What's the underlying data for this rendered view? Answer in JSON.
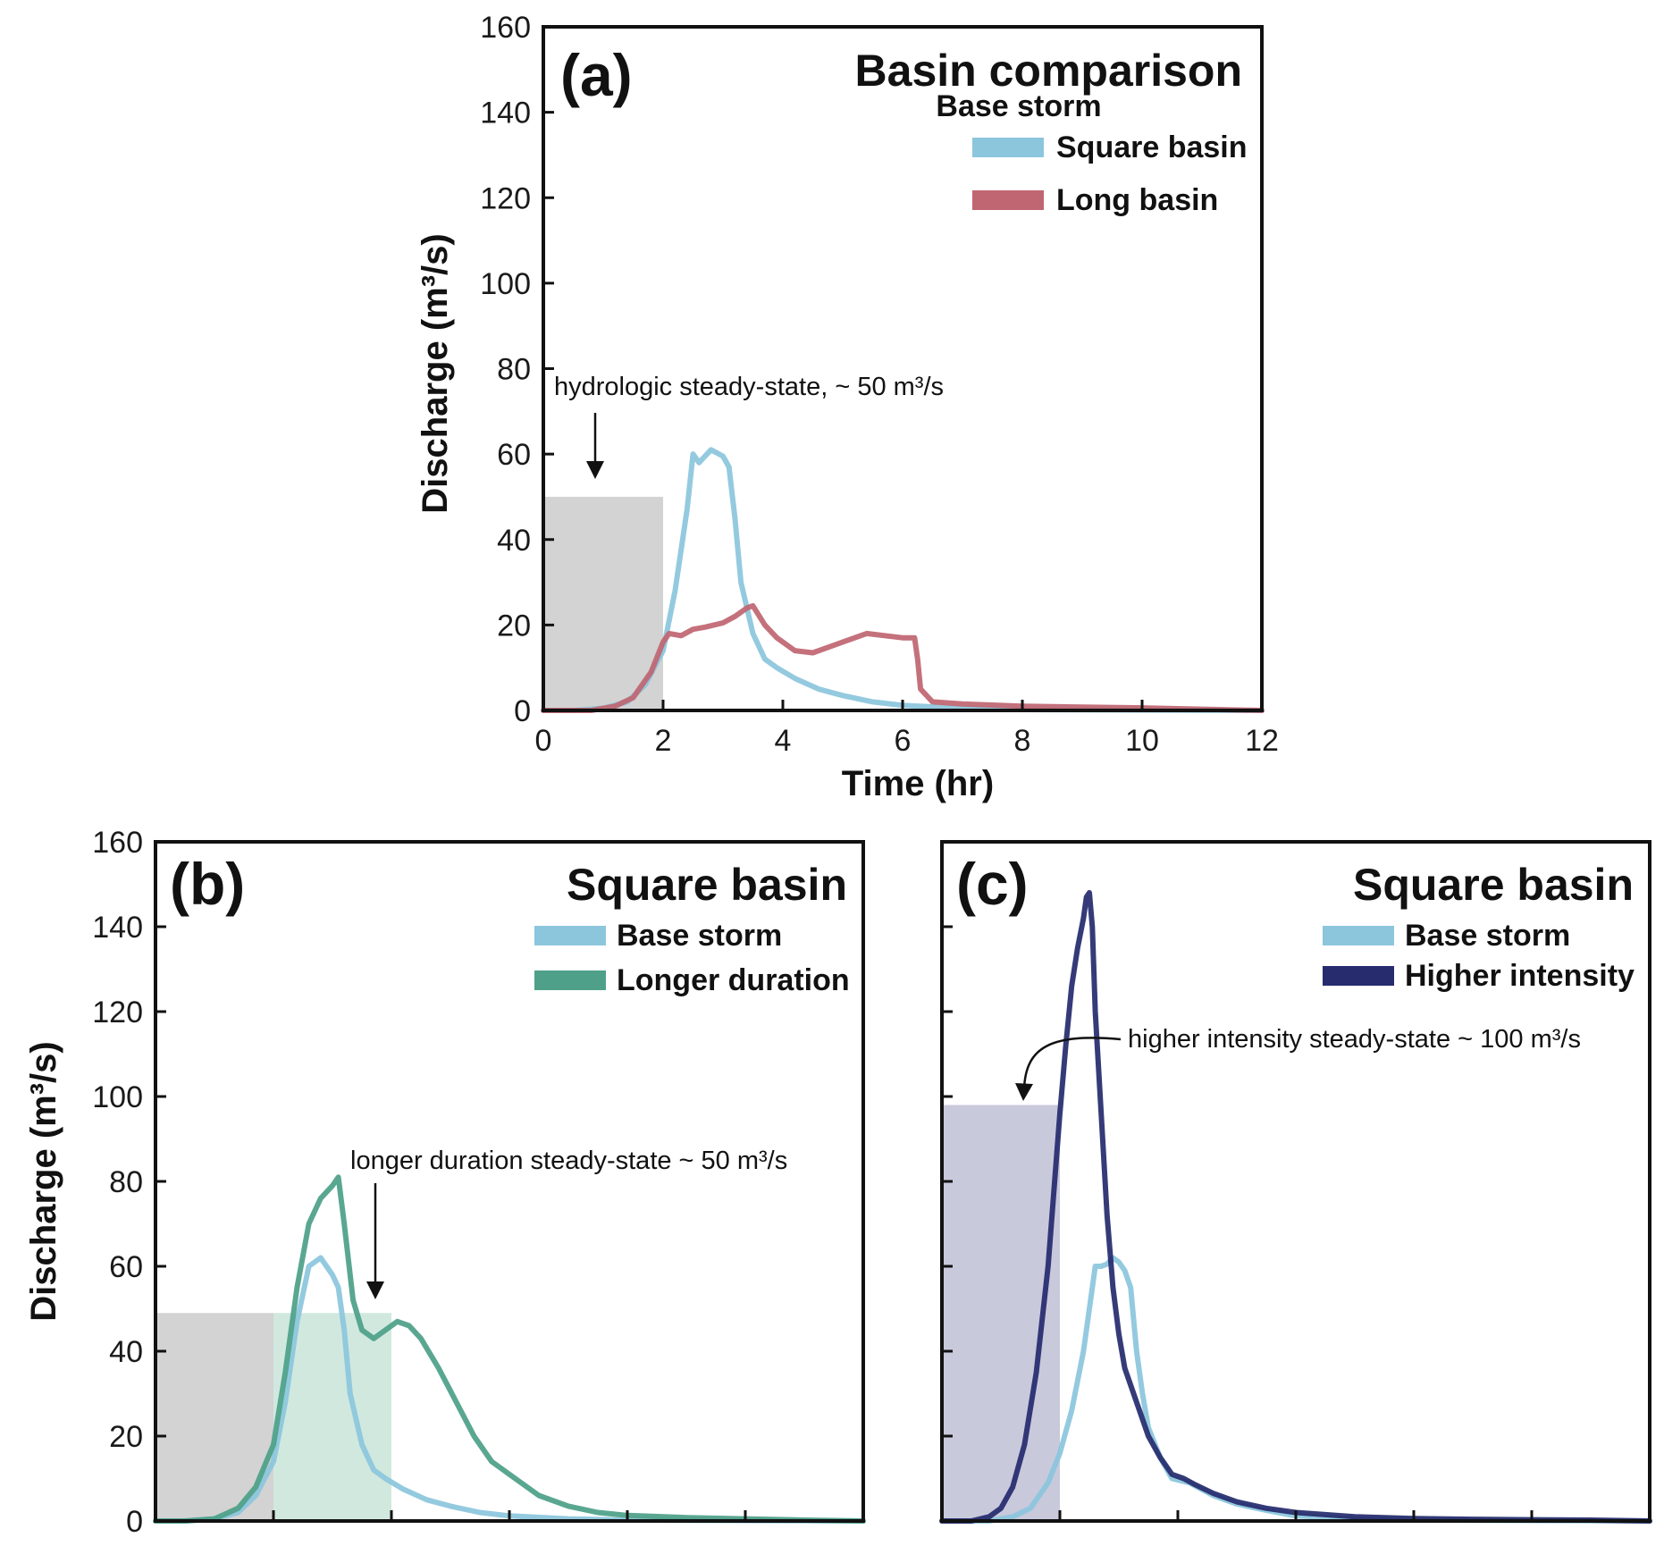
{
  "figure": {
    "ylabel": "Discharge (m³/s)",
    "xlabel": "Time (hr)"
  },
  "colors": {
    "square_basin": "#8cc6dd",
    "long_basin": "#c06672",
    "longer_duration": "#4ea089",
    "higher_intensity": "#262c6e",
    "steady_gray": "#d3d3d3",
    "steady_green": "#d1e8df",
    "steady_purple": "#c9c9dc"
  },
  "chart_data": [
    {
      "id": "a",
      "type": "line",
      "panel_label": "(a)",
      "title": "Basin comparison",
      "subtitle": "Base storm",
      "xlabel": "Time (hr)",
      "ylabel": "Discharge (m³/s)",
      "xlim": [
        0,
        12
      ],
      "ylim": [
        0,
        160
      ],
      "xticks": [
        "0",
        "2",
        "4",
        "6",
        "8",
        "10",
        "12"
      ],
      "yticks": [
        "0",
        "20",
        "40",
        "60",
        "80",
        "100",
        "120",
        "140",
        "160"
      ],
      "legend_position": "top-right",
      "annotation": "hydrologic steady-state, ~ 50 m³/s",
      "steady_state": [
        {
          "x0": 0,
          "x1": 2,
          "y": 50,
          "color": "#d3d3d3"
        }
      ],
      "series": [
        {
          "name": "Square basin",
          "color": "#8cc6dd",
          "points": [
            [
              0,
              0
            ],
            [
              0.5,
              0
            ],
            [
              1,
              0.5
            ],
            [
              1.4,
              2
            ],
            [
              1.7,
              6
            ],
            [
              2,
              14
            ],
            [
              2.2,
              28
            ],
            [
              2.4,
              47
            ],
            [
              2.5,
              60
            ],
            [
              2.6,
              58
            ],
            [
              2.8,
              61
            ],
            [
              3,
              59.5
            ],
            [
              3.1,
              57
            ],
            [
              3.2,
              45
            ],
            [
              3.3,
              30
            ],
            [
              3.5,
              18
            ],
            [
              3.7,
              12
            ],
            [
              3.9,
              10
            ],
            [
              4.2,
              7.5
            ],
            [
              4.6,
              5
            ],
            [
              5,
              3.5
            ],
            [
              5.5,
              2
            ],
            [
              6,
              1.2
            ],
            [
              7,
              0.5
            ],
            [
              8,
              0.2
            ],
            [
              12,
              0
            ]
          ]
        },
        {
          "name": "Long basin",
          "color": "#c06672",
          "points": [
            [
              0,
              0
            ],
            [
              0.8,
              0
            ],
            [
              1.2,
              1
            ],
            [
              1.5,
              3
            ],
            [
              1.8,
              9
            ],
            [
              2,
              16
            ],
            [
              2.1,
              18
            ],
            [
              2.3,
              17.5
            ],
            [
              2.5,
              19
            ],
            [
              2.7,
              19.5
            ],
            [
              3,
              20.5
            ],
            [
              3.2,
              22
            ],
            [
              3.4,
              24
            ],
            [
              3.5,
              24.5
            ],
            [
              3.7,
              20
            ],
            [
              3.9,
              17
            ],
            [
              4.2,
              14
            ],
            [
              4.5,
              13.5
            ],
            [
              4.8,
              15
            ],
            [
              5.1,
              16.5
            ],
            [
              5.4,
              18
            ],
            [
              5.7,
              17.5
            ],
            [
              6,
              17
            ],
            [
              6.2,
              17
            ],
            [
              6.25,
              12
            ],
            [
              6.3,
              5
            ],
            [
              6.5,
              2
            ],
            [
              7,
              1.5
            ],
            [
              8,
              1
            ],
            [
              9,
              0.8
            ],
            [
              10,
              0.6
            ],
            [
              11,
              0.3
            ],
            [
              12,
              0
            ]
          ]
        }
      ]
    },
    {
      "id": "b",
      "type": "line",
      "panel_label": "(b)",
      "title": "Square basin",
      "ylabel": "Discharge (m³/s)",
      "xlim": [
        0,
        12
      ],
      "ylim": [
        0,
        160
      ],
      "yticks": [
        "0",
        "20",
        "40",
        "60",
        "80",
        "100",
        "120",
        "140",
        "160"
      ],
      "legend_position": "top-right",
      "annotation": "longer duration steady-state ~ 50 m³/s",
      "steady_state": [
        {
          "x0": 0,
          "x1": 2,
          "y": 49,
          "color": "#d3d3d3"
        },
        {
          "x0": 2,
          "x1": 4,
          "y": 49,
          "color": "#d1e8df"
        }
      ],
      "series": [
        {
          "name": "Base storm",
          "color": "#8cc6dd",
          "points": [
            [
              0,
              0
            ],
            [
              0.5,
              0
            ],
            [
              1,
              0.5
            ],
            [
              1.4,
              2
            ],
            [
              1.7,
              6
            ],
            [
              2,
              14
            ],
            [
              2.2,
              28
            ],
            [
              2.4,
              47
            ],
            [
              2.6,
              60
            ],
            [
              2.8,
              62
            ],
            [
              3,
              58
            ],
            [
              3.1,
              55
            ],
            [
              3.2,
              45
            ],
            [
              3.3,
              30
            ],
            [
              3.5,
              18
            ],
            [
              3.7,
              12
            ],
            [
              3.9,
              10
            ],
            [
              4.2,
              7.5
            ],
            [
              4.6,
              5
            ],
            [
              5,
              3.5
            ],
            [
              5.5,
              2
            ],
            [
              6,
              1.2
            ],
            [
              7,
              0.5
            ],
            [
              8,
              0.2
            ],
            [
              12,
              0
            ]
          ]
        },
        {
          "name": "Longer duration",
          "color": "#4ea089",
          "points": [
            [
              0,
              0
            ],
            [
              0.5,
              0
            ],
            [
              1,
              0.5
            ],
            [
              1.4,
              3
            ],
            [
              1.7,
              8
            ],
            [
              2,
              18
            ],
            [
              2.2,
              35
            ],
            [
              2.4,
              55
            ],
            [
              2.6,
              70
            ],
            [
              2.8,
              76
            ],
            [
              3,
              79
            ],
            [
              3.1,
              81
            ],
            [
              3.2,
              70
            ],
            [
              3.35,
              52
            ],
            [
              3.5,
              45
            ],
            [
              3.7,
              43
            ],
            [
              3.9,
              45
            ],
            [
              4.1,
              47
            ],
            [
              4.3,
              46
            ],
            [
              4.5,
              43
            ],
            [
              4.8,
              36
            ],
            [
              5.1,
              28
            ],
            [
              5.4,
              20
            ],
            [
              5.7,
              14
            ],
            [
              6,
              11
            ],
            [
              6.5,
              6
            ],
            [
              7,
              3.5
            ],
            [
              7.5,
              2
            ],
            [
              8,
              1.3
            ],
            [
              9,
              0.8
            ],
            [
              10,
              0.5
            ],
            [
              11,
              0.2
            ],
            [
              12,
              0
            ]
          ]
        }
      ]
    },
    {
      "id": "c",
      "type": "line",
      "panel_label": "(c)",
      "title": "Square basin",
      "xlim": [
        0,
        12
      ],
      "ylim": [
        0,
        160
      ],
      "legend_position": "top-right",
      "annotation": "higher intensity steady-state ~ 100 m³/s",
      "steady_state": [
        {
          "x0": 0,
          "x1": 2,
          "y": 49,
          "color": "#d3d3d3"
        },
        {
          "x0": 0,
          "x1": 2,
          "y": 98,
          "color": "#c9c9dc"
        }
      ],
      "series": [
        {
          "name": "Base storm",
          "color": "#8cc6dd",
          "points": [
            [
              0,
              0
            ],
            [
              0.8,
              0
            ],
            [
              1.2,
              1
            ],
            [
              1.5,
              3
            ],
            [
              1.8,
              9
            ],
            [
              2,
              16
            ],
            [
              2.2,
              26
            ],
            [
              2.4,
              40
            ],
            [
              2.5,
              50
            ],
            [
              2.6,
              60
            ],
            [
              2.7,
              60
            ],
            [
              2.8,
              60.5
            ],
            [
              2.9,
              62
            ],
            [
              3,
              61
            ],
            [
              3.1,
              59
            ],
            [
              3.2,
              55
            ],
            [
              3.3,
              40
            ],
            [
              3.4,
              30
            ],
            [
              3.5,
              22
            ],
            [
              3.7,
              15
            ],
            [
              3.9,
              10
            ],
            [
              4.2,
              9
            ],
            [
              4.6,
              6
            ],
            [
              5,
              4
            ],
            [
              5.5,
              2.5
            ],
            [
              6,
              1.2
            ],
            [
              7,
              0.5
            ],
            [
              8,
              0.2
            ],
            [
              12,
              0
            ]
          ]
        },
        {
          "name": "Higher intensity",
          "color": "#262c6e",
          "points": [
            [
              0,
              0
            ],
            [
              0.5,
              0
            ],
            [
              0.8,
              1
            ],
            [
              1,
              3
            ],
            [
              1.2,
              8
            ],
            [
              1.4,
              18
            ],
            [
              1.6,
              35
            ],
            [
              1.8,
              60
            ],
            [
              1.9,
              78
            ],
            [
              2,
              96
            ],
            [
              2.1,
              112
            ],
            [
              2.2,
              126
            ],
            [
              2.3,
              135
            ],
            [
              2.4,
              142
            ],
            [
              2.45,
              147
            ],
            [
              2.5,
              148
            ],
            [
              2.55,
              140
            ],
            [
              2.6,
              120
            ],
            [
              2.7,
              96
            ],
            [
              2.8,
              72
            ],
            [
              2.9,
              55
            ],
            [
              3,
              44
            ],
            [
              3.1,
              36
            ],
            [
              3.3,
              28
            ],
            [
              3.5,
              20
            ],
            [
              3.7,
              15
            ],
            [
              3.9,
              11
            ],
            [
              4.1,
              10
            ],
            [
              4.3,
              8.5
            ],
            [
              4.6,
              6.5
            ],
            [
              5,
              4.5
            ],
            [
              5.5,
              3
            ],
            [
              6,
              2
            ],
            [
              6.5,
              1.5
            ],
            [
              7,
              1
            ],
            [
              8,
              0.6
            ],
            [
              9,
              0.4
            ],
            [
              10,
              0.3
            ],
            [
              11,
              0.2
            ],
            [
              12,
              0
            ]
          ]
        }
      ]
    }
  ]
}
